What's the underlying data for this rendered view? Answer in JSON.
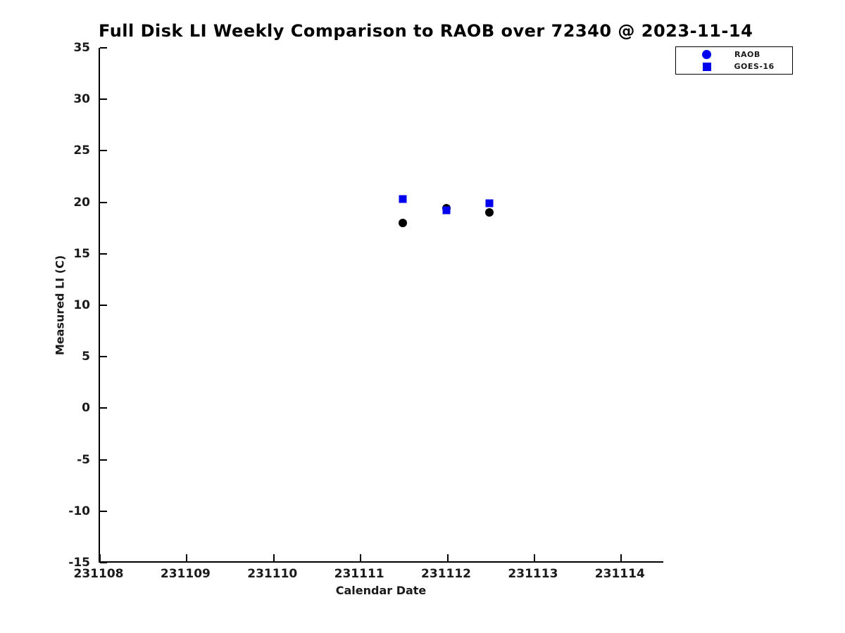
{
  "page": {
    "background_color": "#ffffff",
    "text_color": "#000000"
  },
  "chart_data": {
    "type": "scatter",
    "title": "Full Disk LI Weekly Comparison to RAOB over 72340 @ 2023-11-14",
    "xlabel": "Calendar Date",
    "ylabel": "Measured LI (C)",
    "xlim": [
      231108,
      231114.5
    ],
    "ylim": [
      -15,
      35
    ],
    "x_ticks": [
      231108,
      231109,
      231110,
      231111,
      231112,
      231113,
      231114
    ],
    "y_ticks": [
      35,
      30,
      25,
      20,
      15,
      10,
      5,
      0,
      -5,
      -10,
      -15
    ],
    "grid": false,
    "axis_color": "#000000",
    "series": [
      {
        "name": "RAOB",
        "marker": "circle",
        "plot_color": "#000000",
        "legend_marker_color": "#0000ee",
        "points": [
          {
            "x": 231111.5,
            "y": 18.0
          },
          {
            "x": 231112.0,
            "y": 19.4
          },
          {
            "x": 231112.5,
            "y": 19.0
          }
        ]
      },
      {
        "name": "GOES-16",
        "marker": "square",
        "plot_color": "#0000ee",
        "legend_marker_color": "#0000ee",
        "points": [
          {
            "x": 231111.5,
            "y": 20.3
          },
          {
            "x": 231112.0,
            "y": 19.2
          },
          {
            "x": 231112.5,
            "y": 19.9
          }
        ]
      }
    ],
    "legend": {
      "position": "top-right",
      "border_color": "#000000",
      "entries": [
        "RAOB",
        "GOES-16"
      ]
    }
  }
}
